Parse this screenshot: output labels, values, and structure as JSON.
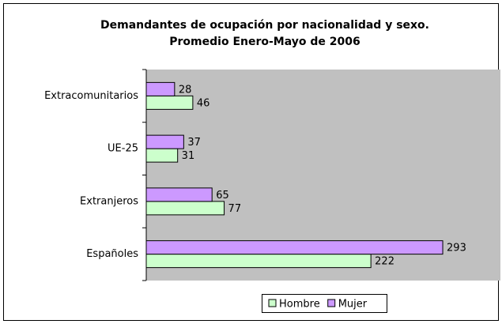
{
  "chart_data": {
    "type": "hbar",
    "title": "Demandantes de ocupación por nacionalidad y sexo.",
    "subtitle": "Promedio Enero-Mayo de 2006",
    "categories": [
      "Extracomunitarios",
      "UE-25",
      "Extranjeros",
      "Españoles"
    ],
    "series": [
      {
        "name": "Hombre",
        "color": "#ccffcc",
        "values": [
          46,
          31,
          77,
          222
        ]
      },
      {
        "name": "Mujer",
        "color": "#cc99ff",
        "values": [
          28,
          37,
          65,
          293
        ]
      }
    ],
    "xlim": [
      0,
      350
    ],
    "plot_background": "#c0c0c0",
    "legend": "bottom"
  }
}
